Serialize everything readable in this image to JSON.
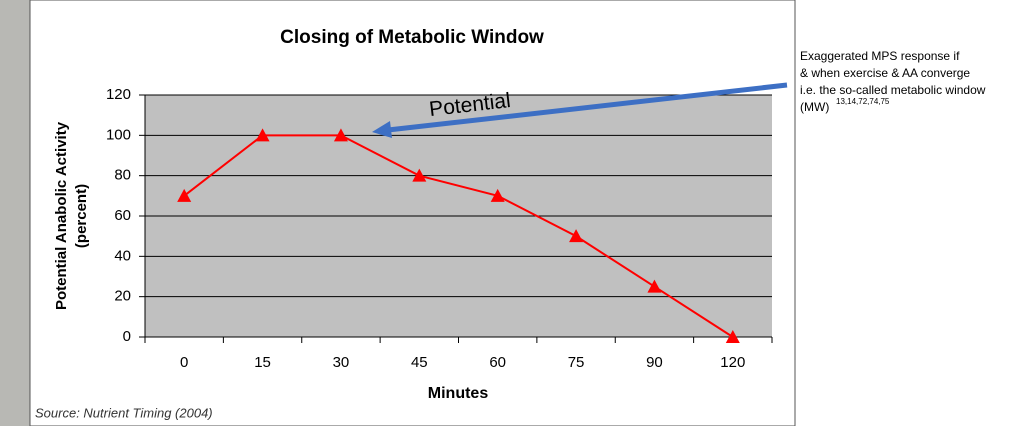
{
  "chart_data": {
    "type": "line",
    "title": "Closing of Metabolic Window",
    "y_label": [
      "Potential Anabolic Activity",
      "(percent)"
    ],
    "x_label": "Minutes",
    "categories": [
      "0",
      "15",
      "30",
      "45",
      "60",
      "75",
      "90",
      "120"
    ],
    "series": [
      {
        "name": "Potential Anabolic Activity",
        "color": "#ff0000",
        "values": [
          70,
          100,
          100,
          80,
          70,
          50,
          25,
          0
        ]
      }
    ],
    "ylim": [
      0,
      120
    ],
    "yticks": [
      0,
      20,
      40,
      60,
      80,
      100,
      120
    ],
    "grid": true,
    "source": "Source: Nutrient Timing (2004)",
    "arrow_label": "Potential",
    "note": {
      "lines": [
        "Exaggerated  MPS response if",
        "& when exercise & AA converge",
        "i.e. the so-called metabolic window",
        "(MW)"
      ],
      "superscript": "13,14,72,74,75"
    }
  }
}
